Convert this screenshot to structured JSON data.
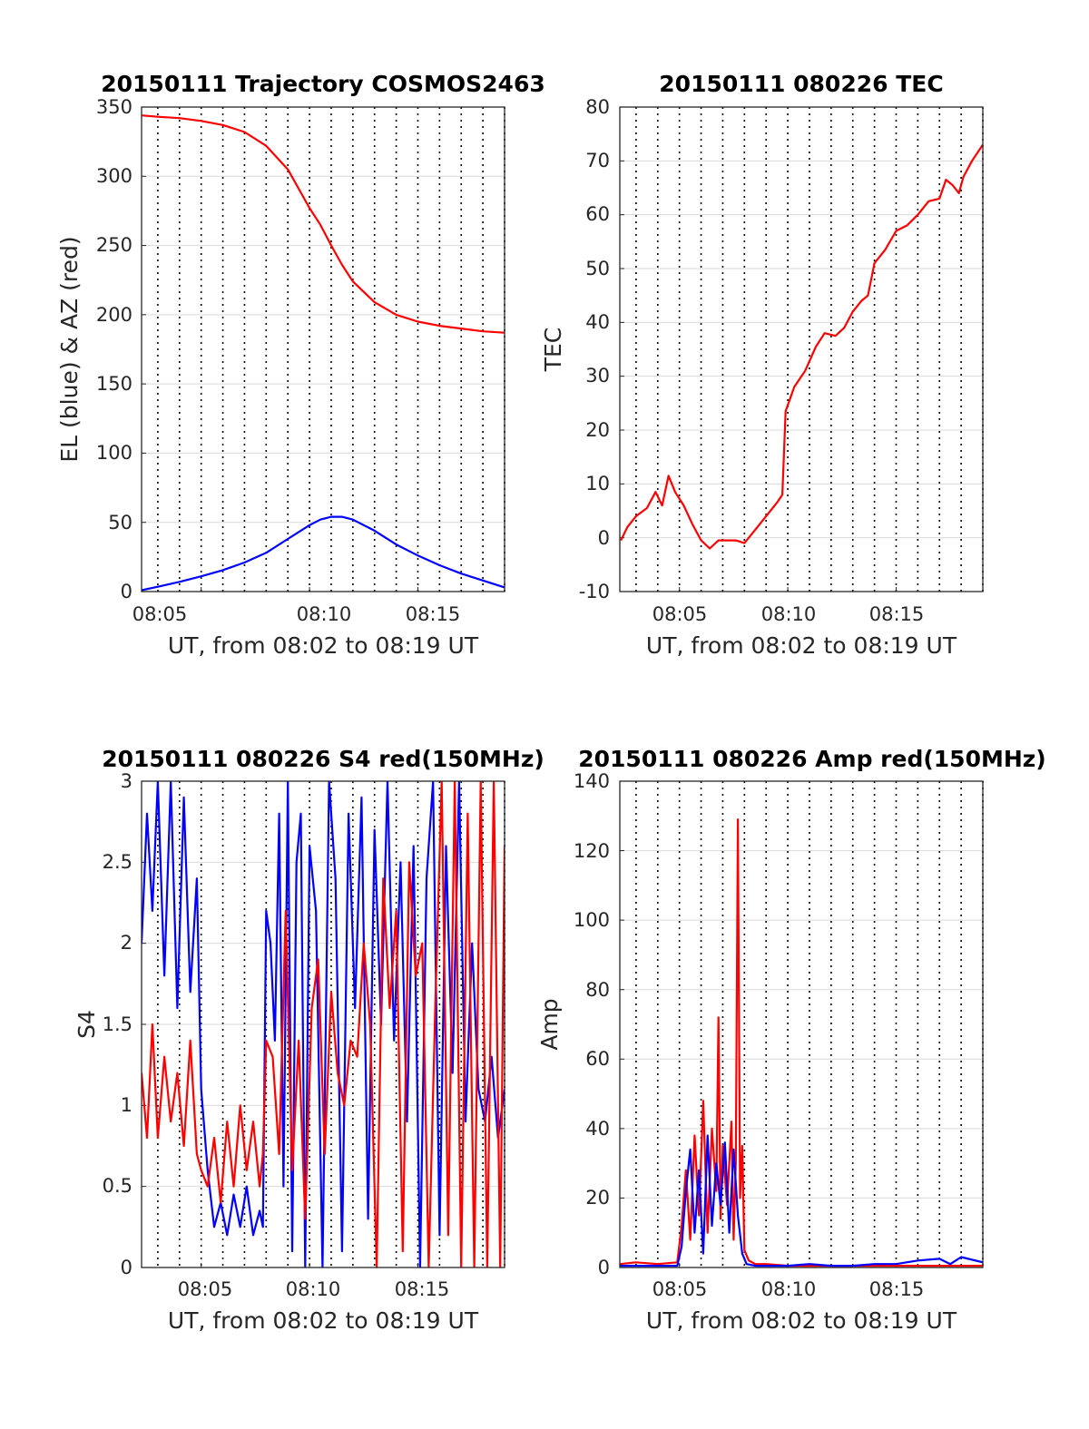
{
  "colors": {
    "red": "#ff0000",
    "blue": "#0000ff",
    "grid": "#d9d9d9",
    "vgrid": "#000000",
    "axis": "#262626"
  },
  "chart_data": [
    {
      "type": "line",
      "title": "20150111 Trajectory COSMOS2463",
      "xlabel": "UT, from 08:02 to 08:19 UT",
      "ylabel": "EL (blue) & AZ (red)",
      "x_unit": "minutes after 08:00 UT",
      "xlim": [
        2.25,
        19
      ],
      "ylim": [
        0,
        350
      ],
      "xticks": [
        5,
        10,
        15
      ],
      "xticklabels": [
        "08:05",
        "08:10",
        "08:15"
      ],
      "yticks": [
        0,
        50,
        100,
        150,
        200,
        250,
        300,
        350
      ],
      "yticklabels": [
        "0",
        "50",
        "100",
        "150",
        "200",
        "250",
        "300",
        "350"
      ],
      "grid": "on",
      "series": [
        {
          "color": "red",
          "x": [
            2.25,
            3,
            4,
            5,
            6,
            7,
            8,
            9,
            10,
            10.5,
            11,
            11.5,
            12,
            13,
            14,
            15,
            16,
            17,
            18,
            19
          ],
          "y": [
            344,
            343,
            342,
            340,
            337,
            332,
            322,
            305,
            277,
            265,
            250,
            236,
            224,
            209,
            200,
            195,
            192,
            190,
            188,
            187
          ]
        },
        {
          "color": "blue",
          "x": [
            2.25,
            3,
            4,
            5,
            6,
            7,
            8,
            9,
            10,
            10.5,
            11,
            11.5,
            12,
            13,
            14,
            15,
            16,
            17,
            18,
            19
          ],
          "y": [
            1,
            3.5,
            7,
            11,
            15.5,
            21,
            28,
            38,
            48,
            52,
            54,
            54,
            52,
            44,
            34,
            26,
            19,
            13,
            8,
            3
          ]
        }
      ]
    },
    {
      "type": "line",
      "title": "20150111 080226 TEC",
      "xlabel": "UT, from 08:02 to 08:19 UT",
      "ylabel": "TEC",
      "x_unit": "minutes after 08:00 UT",
      "xlim": [
        2.25,
        19
      ],
      "ylim": [
        -10,
        80
      ],
      "xticks": [
        5,
        10,
        15
      ],
      "xticklabels": [
        "08:05",
        "08:10",
        "08:15"
      ],
      "yticks": [
        -10,
        0,
        10,
        20,
        30,
        40,
        50,
        60,
        70,
        80
      ],
      "yticklabels": [
        "-10",
        "0",
        "10",
        "20",
        "30",
        "40",
        "50",
        "60",
        "70",
        "80"
      ],
      "grid": "on",
      "series": [
        {
          "color": "red",
          "x": [
            2.3,
            2.6,
            3.0,
            3.5,
            3.9,
            4.2,
            4.5,
            4.8,
            5.2,
            5.6,
            6.0,
            6.4,
            6.8,
            7.2,
            7.6,
            8.0,
            8.5,
            9.0,
            9.5,
            9.75,
            9.9,
            10.3,
            10.8,
            11.3,
            11.7,
            12.2,
            12.6,
            13.0,
            13.4,
            13.7,
            14.0,
            14.5,
            15.0,
            15.5,
            16.0,
            16.5,
            17.0,
            17.3,
            17.6,
            17.9,
            18.1,
            18.5,
            19.0
          ],
          "y": [
            -0.5,
            2,
            4,
            5.5,
            8.5,
            6,
            11.5,
            8.5,
            6,
            2.5,
            -0.5,
            -2,
            -0.5,
            -0.5,
            -0.5,
            -1,
            1.5,
            4,
            6.5,
            8,
            23.5,
            28,
            31,
            35.5,
            38,
            37.5,
            39,
            42,
            44,
            45,
            51,
            53.5,
            57,
            58,
            60,
            62.5,
            63,
            66.5,
            65.5,
            64,
            67,
            70,
            73
          ]
        }
      ]
    },
    {
      "type": "line",
      "title": "20150111 080226 S4 red(150MHz)",
      "xlabel": "UT, from 08:02 to 08:19 UT",
      "ylabel": "S4",
      "x_unit": "minutes after 08:00 UT",
      "xlim": [
        2.25,
        19
      ],
      "ylim": [
        0,
        3
      ],
      "xticks": [
        5,
        10,
        15
      ],
      "xticklabels": [
        "08:05",
        "08:10",
        "08:15"
      ],
      "yticks": [
        0,
        0.5,
        1,
        1.5,
        2,
        2.5,
        3
      ],
      "yticklabels": [
        "0",
        "0.5",
        "1",
        "1.5",
        "2",
        "2.5",
        "3"
      ],
      "grid": "on",
      "series": [
        {
          "color": "blue",
          "x": [
            2.25,
            2.5,
            2.75,
            3.0,
            3.3,
            3.6,
            3.9,
            4.2,
            4.5,
            4.8,
            5.0,
            5.3,
            5.6,
            5.9,
            6.2,
            6.5,
            6.8,
            7.1,
            7.4,
            7.7,
            7.85,
            8.0,
            8.2,
            8.4,
            8.6,
            8.8,
            9.0,
            9.2,
            9.4,
            9.6,
            9.8,
            10.0,
            10.3,
            10.6,
            10.9,
            11.2,
            11.5,
            11.8,
            12.1,
            12.4,
            12.7,
            13.0,
            13.3,
            13.6,
            13.9,
            14.2,
            14.5,
            14.8,
            15.1,
            15.4,
            15.7,
            16.0,
            16.3,
            16.6,
            16.9,
            17.2,
            17.5,
            17.8,
            18.1,
            18.4,
            18.7,
            19.0
          ],
          "y": [
            2.0,
            2.8,
            2.2,
            3.0,
            1.8,
            3.0,
            1.6,
            2.9,
            1.7,
            2.4,
            1.1,
            0.6,
            0.25,
            0.4,
            0.2,
            0.45,
            0.25,
            0.5,
            0.2,
            0.35,
            0.25,
            2.2,
            2.0,
            1.4,
            2.8,
            0.5,
            3.0,
            0.1,
            2.5,
            2.8,
            0.0,
            2.6,
            2.2,
            0.0,
            3.0,
            2.4,
            0.1,
            2.8,
            1.6,
            2.9,
            0.3,
            2.7,
            1.5,
            3.0,
            1.4,
            2.5,
            0.9,
            2.6,
            0.0,
            2.4,
            3.0,
            0.2,
            2.6,
            1.2,
            3.0,
            0.9,
            2.0,
            1.1,
            0.9,
            1.3,
            0.8,
            1.1
          ]
        },
        {
          "color": "red",
          "x": [
            2.25,
            2.5,
            2.75,
            3.0,
            3.3,
            3.6,
            3.9,
            4.2,
            4.5,
            4.8,
            5.0,
            5.3,
            5.6,
            5.9,
            6.2,
            6.5,
            6.8,
            7.1,
            7.4,
            7.7,
            7.85,
            8.0,
            8.3,
            8.6,
            8.9,
            9.2,
            9.5,
            9.8,
            10.1,
            10.4,
            10.7,
            11.0,
            11.3,
            11.6,
            11.9,
            12.2,
            12.5,
            12.8,
            13.1,
            13.4,
            13.7,
            14.0,
            14.3,
            14.6,
            14.9,
            15.2,
            15.5,
            15.8,
            16.1,
            16.4,
            16.7,
            17.0,
            17.3,
            17.6,
            17.9,
            18.2,
            18.5,
            18.8,
            19.0
          ],
          "y": [
            1.2,
            0.8,
            1.5,
            0.8,
            1.3,
            0.9,
            1.2,
            0.75,
            1.4,
            0.7,
            0.6,
            0.5,
            0.8,
            0.4,
            0.9,
            0.5,
            1.0,
            0.6,
            0.9,
            0.5,
            0.7,
            1.4,
            1.3,
            0.7,
            2.2,
            0.6,
            1.4,
            0.3,
            1.6,
            1.9,
            0.7,
            1.7,
            1.2,
            1.0,
            1.4,
            1.3,
            2.0,
            1.5,
            0.0,
            2.4,
            1.6,
            2.2,
            0.1,
            2.5,
            1.8,
            2.0,
            0.0,
            1.6,
            3.0,
            0.2,
            3.0,
            0.0,
            2.8,
            0.0,
            3.0,
            0.0,
            3.0,
            0.0,
            2.6
          ]
        }
      ]
    },
    {
      "type": "line",
      "title": "20150111 080226 Amp red(150MHz)",
      "xlabel": "UT, from 08:02 to 08:19 UT",
      "ylabel": "Amp",
      "x_unit": "minutes after 08:00 UT",
      "xlim": [
        2.25,
        19
      ],
      "ylim": [
        0,
        140
      ],
      "xticks": [
        5,
        10,
        15
      ],
      "xticklabels": [
        "08:05",
        "08:10",
        "08:15"
      ],
      "yticks": [
        0,
        20,
        40,
        60,
        80,
        100,
        120,
        140
      ],
      "yticklabels": [
        "0",
        "20",
        "40",
        "60",
        "80",
        "100",
        "120",
        "140"
      ],
      "grid": "on",
      "series": [
        {
          "color": "red",
          "x": [
            2.25,
            3,
            4,
            4.9,
            5.1,
            5.3,
            5.5,
            5.7,
            5.9,
            6.1,
            6.3,
            6.5,
            6.7,
            6.8,
            6.9,
            7.0,
            7.2,
            7.4,
            7.5,
            7.6,
            7.7,
            7.8,
            7.9,
            8.0,
            8.2,
            8.5,
            9,
            10,
            11,
            12,
            13,
            14,
            15,
            16,
            17,
            18,
            19
          ],
          "y": [
            1,
            1.5,
            1,
            1.5,
            12,
            28,
            8,
            38,
            15,
            48,
            10,
            40,
            22,
            72,
            14,
            35,
            18,
            42,
            8,
            30,
            129,
            20,
            35,
            5,
            2,
            1,
            1,
            0.5,
            0.5,
            0.5,
            0.5,
            0.5,
            0.5,
            0.5,
            0.5,
            0.5,
            0.5
          ]
        },
        {
          "color": "blue",
          "x": [
            2.25,
            3,
            4,
            4.9,
            5.1,
            5.3,
            5.5,
            5.7,
            5.9,
            6.1,
            6.3,
            6.5,
            6.7,
            6.9,
            7.1,
            7.3,
            7.5,
            7.7,
            7.9,
            8.1,
            8.5,
            9,
            10,
            11,
            12,
            13,
            14,
            15,
            16,
            17,
            17.5,
            18,
            19
          ],
          "y": [
            0.5,
            0.5,
            0.5,
            0.5,
            6,
            22,
            34,
            10,
            28,
            4,
            38,
            12,
            30,
            18,
            36,
            10,
            34,
            15,
            4,
            1,
            0.5,
            0.5,
            0.5,
            1,
            0.5,
            0.5,
            1,
            1,
            2,
            2.5,
            1,
            3,
            1.5
          ]
        }
      ]
    }
  ]
}
